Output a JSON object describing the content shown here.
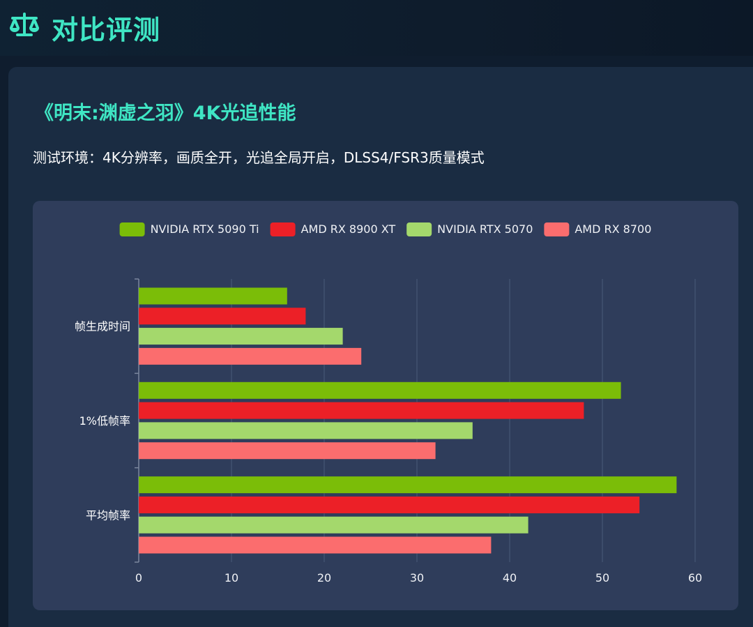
{
  "header": {
    "title": "对比评测",
    "icon": "balance-scale-icon"
  },
  "panel": {
    "title": "《明末:渊虚之羽》4K光追性能",
    "subtitle": "测试环境：4K分辨率，画质全开，光追全局开启，DLSS4/FSR3质量模式"
  },
  "chart_data": {
    "type": "bar",
    "orientation": "horizontal",
    "categories": [
      "帧生成时间",
      "1%低帧率",
      "平均帧率"
    ],
    "series": [
      {
        "name": "NVIDIA RTX 5090 Ti",
        "color": "#7bbd08",
        "values": [
          16,
          52,
          58
        ]
      },
      {
        "name": "AMD RX 8900 XT",
        "color": "#ec2027",
        "values": [
          18,
          48,
          54
        ]
      },
      {
        "name": "NVIDIA RTX 5070",
        "color": "#a4d86c",
        "values": [
          22,
          36,
          42
        ]
      },
      {
        "name": "AMD RX 8700",
        "color": "#fb6d6e",
        "values": [
          24,
          32,
          38
        ]
      }
    ],
    "xlim": [
      0,
      60
    ],
    "xticks": [
      "0",
      "10",
      "20",
      "30",
      "40",
      "50",
      "60"
    ],
    "grid": true,
    "legend": "top-center"
  }
}
